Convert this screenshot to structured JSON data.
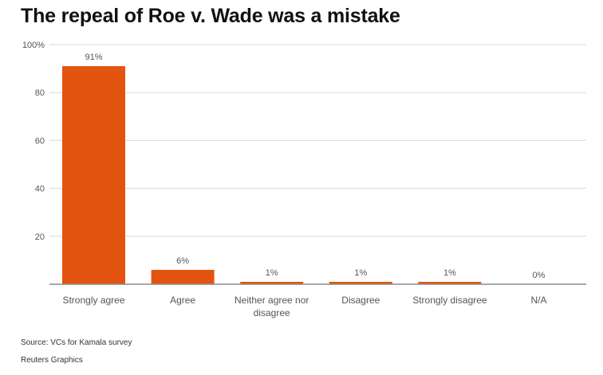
{
  "chart_data": {
    "type": "bar",
    "title": "The repeal of Roe v. Wade was a mistake",
    "categories": [
      "Strongly agree",
      "Agree",
      "Neither agree nor disagree",
      "Disagree",
      "Strongly disagree",
      "N/A"
    ],
    "category_lines": [
      [
        "Strongly agree"
      ],
      [
        "Agree"
      ],
      [
        "Neither agree nor",
        "disagree"
      ],
      [
        "Disagree"
      ],
      [
        "Strongly disagree"
      ],
      [
        "N/A"
      ]
    ],
    "values": [
      91,
      6,
      1,
      1,
      1,
      0
    ],
    "data_labels": [
      "91%",
      "6%",
      "1%",
      "1%",
      "1%",
      "0%"
    ],
    "ylim": [
      0,
      100
    ],
    "y_ticks": [
      20,
      40,
      60,
      80,
      100
    ],
    "y_tick_labels": [
      "20",
      "40",
      "60",
      "80",
      "100%"
    ],
    "xlabel": "",
    "ylabel": "",
    "grid": true,
    "bar_color": "#e35410",
    "grid_color": "#d9d9d9",
    "axis_color": "#8c8c8c"
  },
  "footer": {
    "source": "Source: VCs for Kamala survey",
    "credit": "Reuters Graphics"
  }
}
